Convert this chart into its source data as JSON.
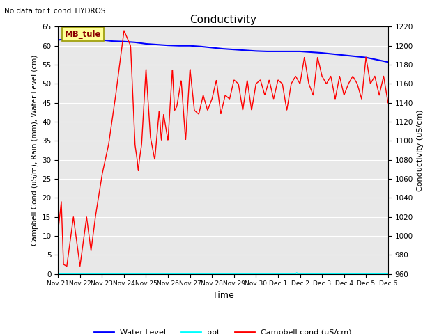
{
  "title": "Conductivity",
  "no_data_text": "No data for f_cond_HYDROS",
  "mb_tule_label": "MB_tule",
  "ylabel_left": "Campbell Cond (uS/m), Rain (mm), Water Level (cm)",
  "ylabel_right": "Conductivity (uS/cm)",
  "xlabel": "Time",
  "ylim_left": [
    0,
    65
  ],
  "ylim_right": [
    960,
    1220
  ],
  "bg_color": "#e8e8e8",
  "grid_color": "#ffffff",
  "x_tick_labels": [
    "Nov 21",
    "Nov 22",
    "Nov 23",
    "Nov 24",
    "Nov 25",
    "Nov 26",
    "Nov 27",
    "Nov 28",
    "Nov 29",
    "Nov 30",
    "Dec 1",
    "Dec 2",
    "Dec 3",
    "Dec 4",
    "Dec 5",
    "Dec 6"
  ],
  "water_level_x": [
    0,
    0.5,
    1.0,
    1.5,
    2.0,
    2.5,
    3.0,
    3.5,
    4.0,
    4.5,
    5.0,
    5.5,
    6.0,
    6.5,
    7.0,
    7.5,
    8.0,
    8.5,
    9.0,
    9.5,
    10.0,
    10.5,
    11.0,
    11.5,
    12.0,
    12.5,
    13.0,
    13.5,
    14.0,
    14.5,
    15.0
  ],
  "water_level_y": [
    61.5,
    61.9,
    62.0,
    61.8,
    61.5,
    61.2,
    61.1,
    60.9,
    60.5,
    60.3,
    60.1,
    60.0,
    60.0,
    59.8,
    59.5,
    59.2,
    59.0,
    58.8,
    58.6,
    58.5,
    58.5,
    58.5,
    58.5,
    58.3,
    58.1,
    57.8,
    57.5,
    57.2,
    56.9,
    56.3,
    55.7
  ],
  "red_key_x": [
    0,
    0.15,
    0.25,
    0.4,
    0.7,
    1.0,
    1.3,
    1.5,
    1.7,
    2.0,
    2.3,
    2.6,
    3.0,
    3.3,
    3.5,
    3.6,
    3.65,
    3.7,
    3.8,
    4.0,
    4.2,
    4.4,
    4.6,
    4.7,
    4.8,
    5.0,
    5.2,
    5.3,
    5.4,
    5.6,
    5.8,
    6.0,
    6.2,
    6.4,
    6.6,
    6.8,
    7.0,
    7.2,
    7.4,
    7.6,
    7.8,
    8.0,
    8.2,
    8.4,
    8.6,
    8.8,
    9.0,
    9.2,
    9.4,
    9.6,
    9.8,
    10.0,
    10.2,
    10.4,
    10.6,
    10.8,
    11.0,
    11.2,
    11.4,
    11.6,
    11.8,
    12.0,
    12.2,
    12.4,
    12.6,
    12.8,
    13.0,
    13.2,
    13.4,
    13.6,
    13.8,
    14.0,
    14.2,
    14.4,
    14.6,
    14.8,
    15.0
  ],
  "red_key_y": [
    11,
    19,
    2.5,
    2,
    15,
    2,
    15,
    6,
    15,
    26,
    34,
    46,
    64,
    60,
    34,
    30,
    27,
    30,
    34,
    54,
    36,
    30,
    43,
    35,
    42,
    35,
    54,
    43,
    44,
    51,
    35,
    54,
    43,
    42,
    47,
    43,
    46,
    51,
    42,
    47,
    46,
    51,
    50,
    43,
    51,
    43,
    50,
    51,
    47,
    51,
    46,
    51,
    50,
    43,
    50,
    52,
    50,
    57,
    50,
    47,
    57,
    52,
    50,
    52,
    46,
    52,
    47,
    50,
    52,
    50,
    46,
    57,
    50,
    52,
    47,
    52,
    45
  ],
  "ppt_x": [
    0,
    10.8,
    10.85,
    10.9,
    15
  ],
  "ppt_y": [
    0,
    0,
    0.3,
    0,
    0
  ]
}
